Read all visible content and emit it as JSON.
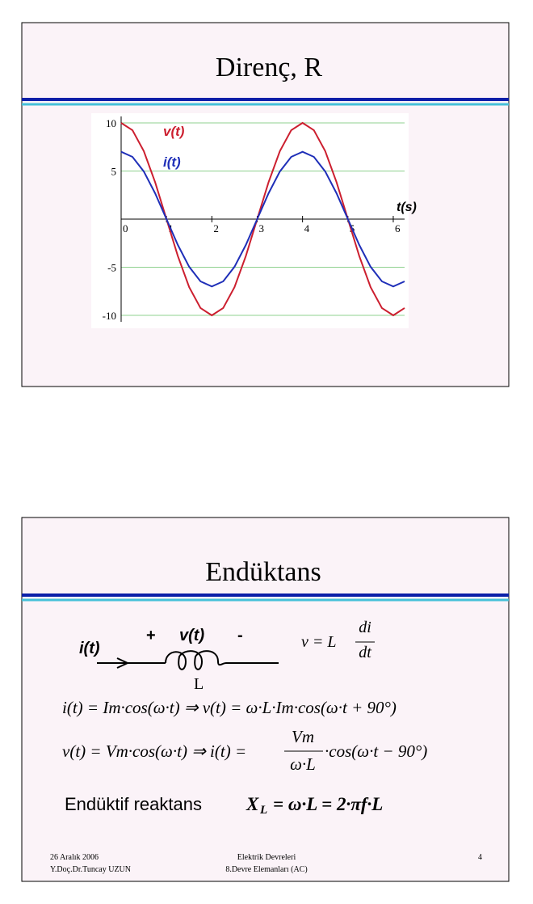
{
  "slide1": {
    "title": "Direnç, R"
  },
  "chart_data": {
    "type": "line",
    "x_label": "t(s)",
    "x": [
      0,
      0.25,
      0.5,
      0.75,
      1,
      1.25,
      1.5,
      1.75,
      2,
      2.25,
      2.5,
      2.75,
      3,
      3.25,
      3.5,
      3.75,
      4,
      4.25,
      4.5,
      4.75,
      5,
      5.25,
      5.5,
      5.75,
      6,
      6.25
    ],
    "series": [
      {
        "name": "v(t)",
        "color": "#cc1f2f",
        "values": [
          10,
          9.24,
          7.07,
          3.83,
          0,
          -3.83,
          -7.07,
          -9.24,
          -10,
          -9.24,
          -7.07,
          -3.83,
          0,
          3.83,
          7.07,
          9.24,
          10,
          9.24,
          7.07,
          3.83,
          0,
          -3.83,
          -7.07,
          -9.24,
          -10,
          -9.24
        ]
      },
      {
        "name": "i(t)",
        "color": "#1f2fb8",
        "values": [
          7,
          6.47,
          4.95,
          2.68,
          0,
          -2.68,
          -4.95,
          -6.47,
          -7,
          -6.47,
          -4.95,
          -2.68,
          0,
          2.68,
          4.95,
          6.47,
          7,
          6.47,
          4.95,
          2.68,
          0,
          -2.68,
          -4.95,
          -6.47,
          -7,
          -6.47
        ]
      }
    ],
    "xlim": [
      0,
      6.25
    ],
    "ylim": [
      -10,
      10
    ],
    "xticks": [
      0,
      1,
      2,
      3,
      4,
      5,
      6
    ],
    "yticks": [
      -10,
      -5,
      5,
      10
    ],
    "grid": true,
    "grid_color": "#8fd18f"
  },
  "slide2": {
    "title": "Endüktans",
    "circuit": {
      "current": "i(t)",
      "plus": "+",
      "voltage": "v(t)",
      "minus": "-",
      "inductor": "L"
    },
    "law": {
      "lhs": "v = L",
      "num": "di",
      "den": "dt"
    },
    "eq1": "i(t) = Im·cos(ω·t) ⇒ v(t) = ω·L·Im·cos(ω·t + 90°)",
    "eq2": {
      "lhs": "v(t) = Vm·cos(ω·t) ⇒ i(t) =",
      "num": "Vm",
      "den": "ω·L",
      "rhs": "·cos(ω·t − 90°)"
    },
    "reactance": {
      "label": "Endüktif reaktans",
      "symbol": "X",
      "sub": "L",
      "formula": "= ω·L = 2·πf·L"
    },
    "footer": {
      "date": "26 Aralık 2006",
      "author": "Y.Doç.Dr.Tuncay UZUN",
      "course": "Elektrik Devreleri",
      "chapter": "8.Devre Elemanları (AC)",
      "page": "4"
    }
  }
}
